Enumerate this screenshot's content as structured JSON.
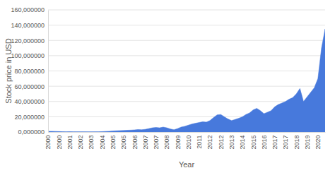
{
  "chart_data": {
    "type": "area",
    "x_label": "Year",
    "y_label": "Stock price in USD",
    "color": "#4779dc",
    "grid": true,
    "ylim": [
      0,
      160
    ],
    "yticks": [
      {
        "value": 0,
        "label": "0,000000"
      },
      {
        "value": 20,
        "label": "20,000000"
      },
      {
        "value": 40,
        "label": "40,000000"
      },
      {
        "value": 60,
        "label": "60,000000"
      },
      {
        "value": 80,
        "label": "80,000000"
      },
      {
        "value": 100,
        "label": "100,000000"
      },
      {
        "value": 120,
        "label": "120,000000"
      },
      {
        "value": 140,
        "label": "140,000000"
      },
      {
        "value": 160,
        "label": "160,000000"
      }
    ],
    "categories": [
      "2000",
      null,
      null,
      "2000",
      null,
      null,
      "2001",
      null,
      null,
      "2002",
      null,
      null,
      "2003",
      null,
      null,
      "2004",
      null,
      null,
      "2005",
      null,
      null,
      "2005",
      null,
      null,
      "2006",
      null,
      null,
      "2007",
      null,
      null,
      "2007",
      null,
      null,
      "2008",
      null,
      null,
      "2009",
      null,
      null,
      "2010",
      null,
      null,
      "2011",
      null,
      null,
      "2012",
      null,
      null,
      "2012",
      null,
      null,
      "2013",
      null,
      null,
      "2014",
      null,
      null,
      "2015",
      null,
      null,
      "2016",
      null,
      null,
      "2017",
      null,
      null,
      "2017",
      null,
      null,
      "2018",
      null,
      null,
      "2019",
      null,
      null,
      "2020",
      null,
      null
    ],
    "values": [
      1.0,
      0.9,
      0.8,
      0.6,
      0.4,
      0.3,
      0.4,
      0.3,
      0.3,
      0.3,
      0.3,
      0.2,
      0.2,
      0.3,
      0.3,
      0.5,
      0.8,
      1.0,
      1.3,
      1.6,
      1.8,
      2.0,
      2.3,
      2.5,
      2.8,
      3.2,
      3.0,
      3.5,
      4.5,
      5.5,
      6.0,
      5.5,
      6.5,
      5.5,
      4.0,
      3.0,
      4.5,
      6.5,
      7.5,
      9.0,
      10.5,
      11.5,
      12.5,
      13.5,
      13.0,
      15.0,
      19.0,
      22.5,
      23.0,
      20.0,
      17.0,
      15.0,
      16.5,
      18.0,
      20.0,
      23.0,
      25.0,
      29.0,
      31.0,
      28.0,
      24.0,
      26.0,
      28.0,
      33.0,
      36.0,
      38.0,
      40.0,
      43.0,
      45.0,
      50.0,
      57.0,
      40.0,
      46.0,
      52.0,
      58.0,
      70.0,
      110.0,
      135.0
    ]
  }
}
